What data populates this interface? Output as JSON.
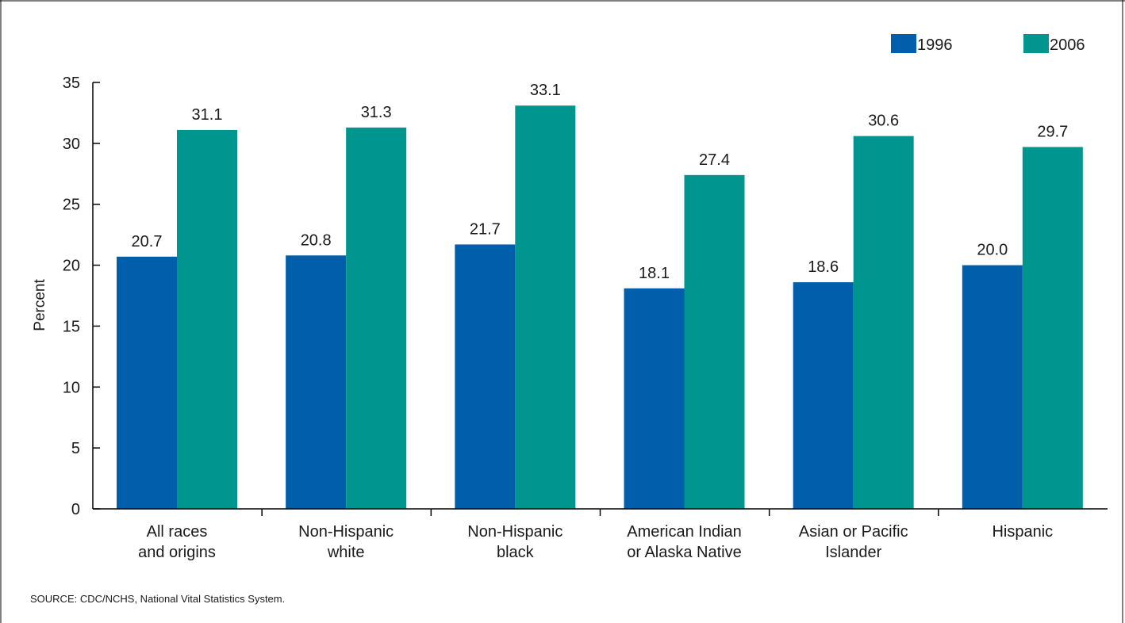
{
  "chart_data": {
    "type": "bar",
    "categories": [
      [
        "All races",
        "and origins"
      ],
      [
        "Non-Hispanic",
        "white"
      ],
      [
        "Non-Hispanic",
        "black"
      ],
      [
        "American Indian",
        "or Alaska Native"
      ],
      [
        "Asian or Pacific",
        "Islander"
      ],
      [
        "Hispanic"
      ]
    ],
    "series": [
      {
        "name": "1996",
        "color": "#005eaa",
        "values": [
          20.7,
          20.8,
          21.7,
          18.1,
          18.6,
          20.0
        ]
      },
      {
        "name": "2006",
        "color": "#00968f",
        "values": [
          31.1,
          31.3,
          33.1,
          27.4,
          30.6,
          29.7
        ]
      }
    ],
    "ylabel": "Percent",
    "ylim": [
      0,
      35
    ],
    "yticks": [
      0,
      5,
      10,
      15,
      20,
      25,
      30,
      35
    ],
    "grid": false,
    "legend_position": "top-right",
    "data_label_decimals": 1
  },
  "source_note": "SOURCE: CDC/NCHS, National Vital Statistics System."
}
